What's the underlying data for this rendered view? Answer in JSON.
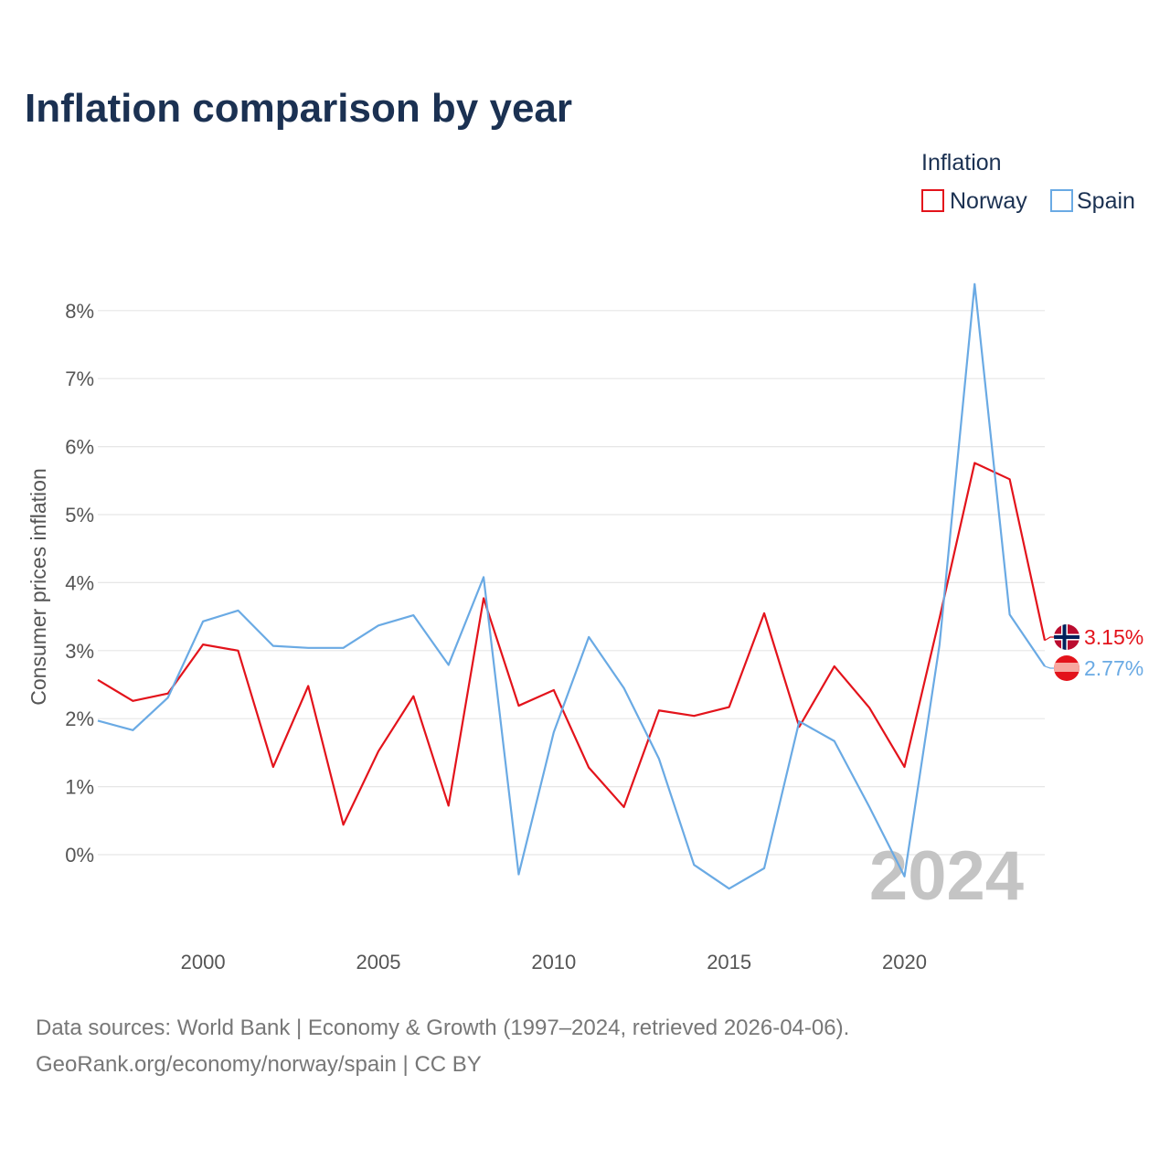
{
  "colors": {
    "norway": "#e3131b",
    "spain": "#6aaae4"
  },
  "chart_data": {
    "type": "line",
    "title": "Inflation comparison by year",
    "ylabel": "Consumer prices inflation",
    "xlabel": "",
    "legend_title": "Inflation",
    "legend_position": "top-right",
    "watermark": "2024",
    "x": [
      1997,
      1998,
      1999,
      2000,
      2001,
      2002,
      2003,
      2004,
      2005,
      2006,
      2007,
      2008,
      2009,
      2010,
      2011,
      2012,
      2013,
      2014,
      2015,
      2016,
      2017,
      2018,
      2019,
      2020,
      2021,
      2022,
      2023,
      2024
    ],
    "xlim": [
      1997,
      2024
    ],
    "ylim": [
      -1.3,
      8.7
    ],
    "x_ticks": [
      2000,
      2005,
      2010,
      2015,
      2020
    ],
    "x_tick_labels": [
      "2000",
      "2005",
      "2010",
      "2015",
      "2020"
    ],
    "y_ticks": [
      0,
      1,
      2,
      3,
      4,
      5,
      6,
      7,
      8
    ],
    "y_tick_labels": [
      "0%",
      "1%",
      "2%",
      "3%",
      "4%",
      "5%",
      "6%",
      "7%",
      "8%"
    ],
    "series": [
      {
        "name": "Norway",
        "color": "#e3131b",
        "end_label": "3.15%",
        "flag_icon": "norway-flag-icon",
        "values": [
          2.57,
          2.26,
          2.37,
          3.09,
          3.0,
          1.29,
          2.48,
          0.44,
          1.52,
          2.33,
          0.72,
          3.77,
          2.19,
          2.42,
          1.28,
          0.7,
          2.12,
          2.04,
          2.17,
          3.55,
          1.88,
          2.77,
          2.16,
          1.29,
          3.48,
          5.76,
          5.52,
          3.15
        ]
      },
      {
        "name": "Spain",
        "color": "#6aaae4",
        "end_label": "2.77%",
        "flag_icon": "spain-flag-icon",
        "values": [
          1.97,
          1.83,
          2.31,
          3.43,
          3.59,
          3.07,
          3.04,
          3.04,
          3.37,
          3.52,
          2.79,
          4.08,
          -0.29,
          1.8,
          3.2,
          2.45,
          1.41,
          -0.15,
          -0.5,
          -0.2,
          1.96,
          1.67,
          0.7,
          -0.32,
          3.09,
          8.39,
          3.53,
          2.77
        ]
      }
    ]
  },
  "source": {
    "line1": "Data sources: World Bank | Economy & Growth (1997–2024, retrieved 2026-04-06).",
    "line2": "GeoRank.org/economy/norway/spain | CC BY"
  }
}
